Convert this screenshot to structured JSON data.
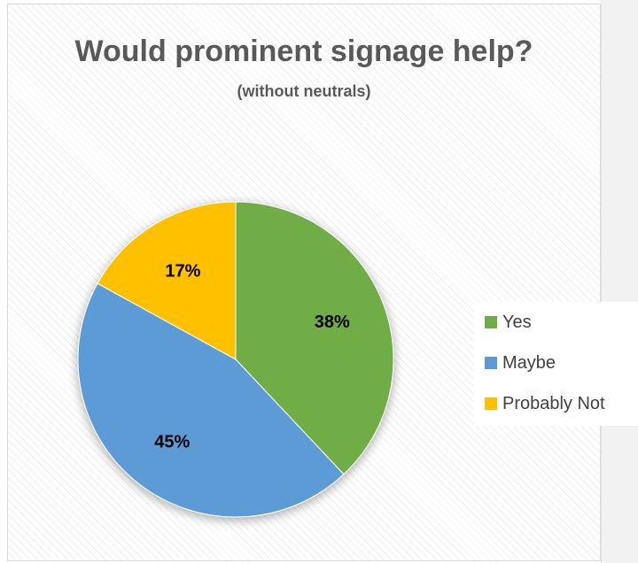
{
  "chart_data": {
    "type": "pie",
    "title": "Would prominent signage help?",
    "subtitle": "(without neutrals)",
    "categories": [
      "Yes",
      "Maybe",
      "Probably Not"
    ],
    "values": [
      38,
      45,
      17
    ],
    "labels": [
      "38%",
      "45%",
      "17%"
    ],
    "colors": [
      "#70ad47",
      "#5b9bd5",
      "#ffc000"
    ],
    "legend_position": "right"
  }
}
